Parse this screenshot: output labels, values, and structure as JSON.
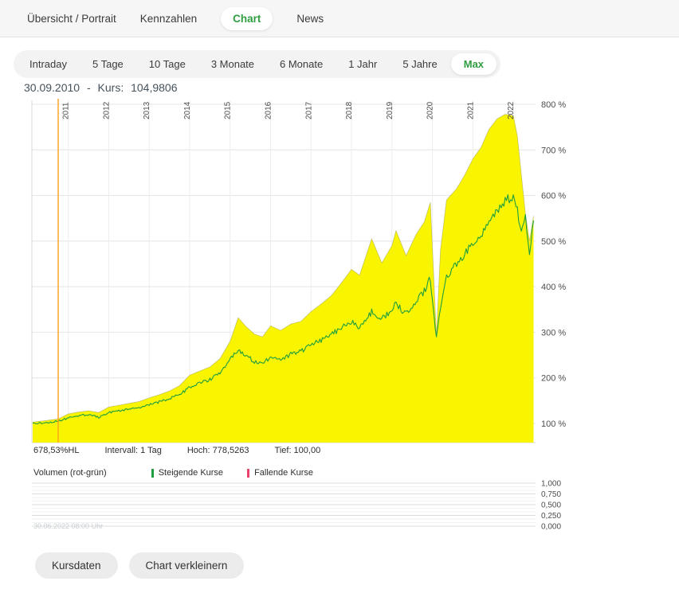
{
  "colors": {
    "accent": "#2f9e41",
    "area_yellow": "#f9f500",
    "price_line_green": "#1f9d3f",
    "crosshair_orange": "#ffa01e",
    "negative_red": "#e8436a",
    "grid": "#e4e4e4"
  },
  "nav": {
    "tabs": [
      {
        "label": "Übersicht / Portrait",
        "active": false
      },
      {
        "label": "Kennzahlen",
        "active": false
      },
      {
        "label": "Chart",
        "active": true
      },
      {
        "label": "News",
        "active": false
      }
    ]
  },
  "range_tabs": [
    {
      "label": "Intraday",
      "active": false
    },
    {
      "label": "5 Tage",
      "active": false
    },
    {
      "label": "10 Tage",
      "active": false
    },
    {
      "label": "3 Monate",
      "active": false
    },
    {
      "label": "6 Monate",
      "active": false
    },
    {
      "label": "1 Jahr",
      "active": false
    },
    {
      "label": "5 Jahre",
      "active": false
    },
    {
      "label": "Max",
      "active": true
    }
  ],
  "stats": {
    "performance": "678,53%HL",
    "interval": "Intervall: 1 Tag",
    "hoch": "Hoch: 778,5263",
    "tief": "Tief: 100,00"
  },
  "buttons": {
    "kursdaten": "Kursdaten",
    "verkleinern": "Chart verkleinern"
  },
  "chart_data": {
    "main": {
      "type": "area",
      "x_unit": "year",
      "y_unit": "%",
      "xlim": [
        2010.1,
        2022.55
      ],
      "ylim": [
        100,
        800
      ],
      "x_ticks": [
        2011,
        2012,
        2013,
        2014,
        2015,
        2016,
        2017,
        2018,
        2019,
        2020,
        2021,
        2022
      ],
      "y_ticks": [
        100,
        200,
        300,
        400,
        500,
        600,
        700,
        800
      ],
      "grid": true,
      "x": [
        2010.12,
        2010.4,
        2010.75,
        2011.0,
        2011.25,
        2011.5,
        2011.75,
        2012.0,
        2012.25,
        2012.5,
        2012.75,
        2013.0,
        2013.25,
        2013.5,
        2013.75,
        2014.0,
        2014.25,
        2014.5,
        2014.75,
        2015.0,
        2015.2,
        2015.4,
        2015.6,
        2015.8,
        2016.0,
        2016.25,
        2016.5,
        2016.75,
        2017.0,
        2017.25,
        2017.5,
        2017.75,
        2018.0,
        2018.2,
        2018.5,
        2018.75,
        2019.0,
        2019.1,
        2019.35,
        2019.6,
        2019.8,
        2019.95,
        2020.1,
        2020.2,
        2020.35,
        2020.6,
        2020.8,
        2021.0,
        2021.2,
        2021.4,
        2021.6,
        2021.8,
        2022.0,
        2022.1,
        2022.2,
        2022.3,
        2022.4,
        2022.5
      ],
      "series": [
        {
          "name": "Hoch-Tief-Spanne",
          "style": "area",
          "color": "#f9f500",
          "values": [
            103,
            106,
            110,
            121,
            125,
            128,
            124,
            136,
            140,
            144,
            148,
            156,
            163,
            171,
            183,
            206,
            215,
            224,
            242,
            280,
            332,
            312,
            296,
            290,
            314,
            304,
            318,
            324,
            345,
            362,
            380,
            408,
            438,
            425,
            505,
            452,
            490,
            523,
            468,
            515,
            542,
            585,
            292,
            480,
            590,
            615,
            645,
            680,
            705,
            745,
            768,
            778,
            775,
            730,
            645,
            560,
            500,
            555
          ]
        },
        {
          "name": "Kurs",
          "style": "line",
          "color": "#1f9d3f",
          "values": [
            100,
            101,
            105,
            112,
            116,
            120,
            113,
            124,
            128,
            131,
            134,
            141,
            147,
            154,
            163,
            180,
            188,
            196,
            212,
            240,
            262,
            248,
            236,
            231,
            246,
            238,
            252,
            258,
            272,
            283,
            295,
            310,
            322,
            310,
            345,
            330,
            350,
            362,
            340,
            368,
            390,
            420,
            288,
            350,
            420,
            450,
            470,
            495,
            515,
            545,
            565,
            585,
            600,
            570,
            520,
            555,
            475,
            545
          ]
        }
      ],
      "crosshair": {
        "x_year": 2010.75,
        "color": "#ffa01e",
        "date": "30.09.2010",
        "dash": "-",
        "label": "Kurs:",
        "value": "104,9806"
      }
    },
    "volume": {
      "type": "bar",
      "title": "Volumen (rot-grün)",
      "legend": [
        {
          "label": "Steigende Kurse",
          "color": "#1f9d3f"
        },
        {
          "label": "Fallende Kurse",
          "color": "#e8436a"
        }
      ],
      "y_ticks": [
        "1,000",
        "0,750",
        "0,500",
        "0,250",
        "0,000"
      ],
      "values": [],
      "watermark": "30.06.2022 08:00 Uhr"
    }
  }
}
